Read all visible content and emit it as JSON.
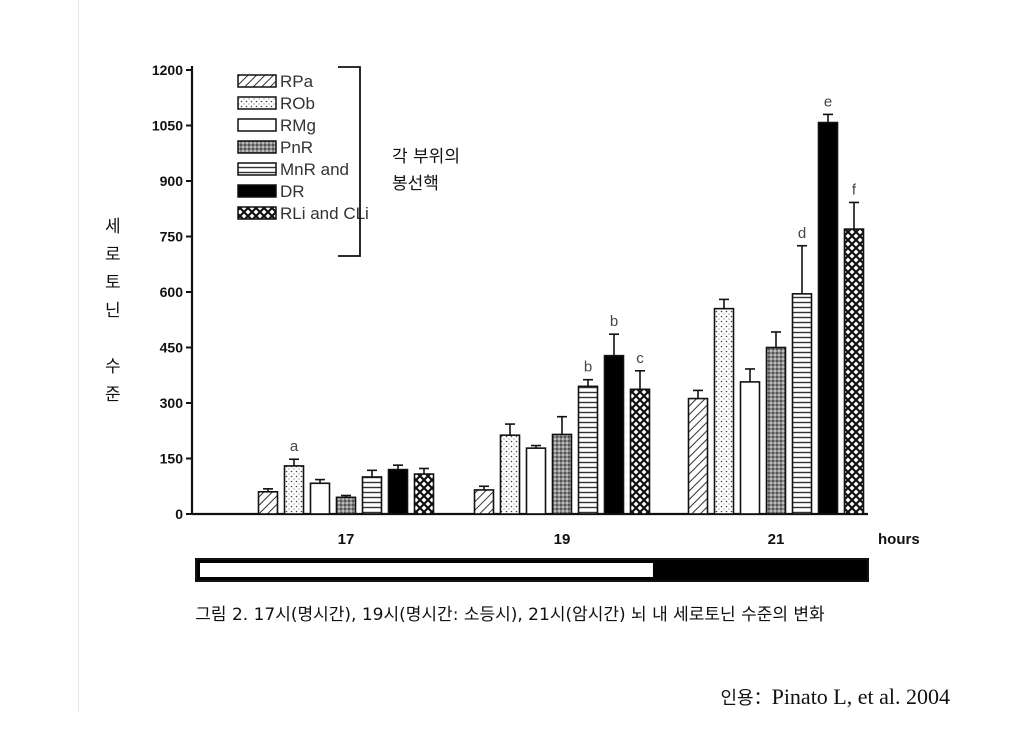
{
  "chart_data": {
    "type": "bar",
    "categories": [
      "17",
      "19",
      "21"
    ],
    "xlabel": "hours",
    "ylabel": "세로토닌 수준",
    "ylim": [
      0,
      1200
    ],
    "yticks": [
      0,
      150,
      300,
      450,
      600,
      750,
      900,
      1050,
      1200
    ],
    "ytick_labels": [
      "0",
      "150",
      "300",
      "450",
      "600",
      "750",
      "900",
      "1050",
      "1200"
    ],
    "legend_position": "top-left",
    "series": [
      {
        "name": "RPa",
        "pattern": "diagonal",
        "values": [
          60,
          65,
          312
        ],
        "errors": [
          8,
          10,
          22
        ],
        "annotations": [
          "",
          "",
          ""
        ]
      },
      {
        "name": "ROb",
        "pattern": "dots",
        "values": [
          130,
          213,
          555
        ],
        "errors": [
          18,
          30,
          25
        ],
        "annotations": [
          "a",
          "",
          ""
        ]
      },
      {
        "name": "RMg",
        "pattern": "white",
        "values": [
          83,
          178,
          357
        ],
        "errors": [
          10,
          7,
          35
        ],
        "annotations": [
          "",
          "",
          ""
        ]
      },
      {
        "name": "PnR",
        "pattern": "crosshatch-dense",
        "values": [
          45,
          215,
          450
        ],
        "errors": [
          5,
          48,
          42
        ],
        "annotations": [
          "",
          "",
          ""
        ]
      },
      {
        "name": "MnR and",
        "pattern": "horizontal",
        "values": [
          100,
          345,
          595
        ],
        "errors": [
          18,
          18,
          130
        ],
        "annotations": [
          "",
          "b",
          "d"
        ]
      },
      {
        "name": "DR",
        "pattern": "black",
        "values": [
          120,
          428,
          1058
        ],
        "errors": [
          12,
          58,
          22
        ],
        "annotations": [
          "",
          "b",
          "e"
        ]
      },
      {
        "name": "RLi and CLi",
        "pattern": "checker",
        "values": [
          108,
          337,
          770
        ],
        "errors": [
          15,
          50,
          72
        ],
        "annotations": [
          "",
          "c",
          "f"
        ]
      }
    ],
    "light_dark_bar": {
      "light_fraction": 0.68
    },
    "bracket_label_lines": [
      "각 부위의",
      "봉선핵"
    ]
  },
  "ylabel_chars": [
    "세",
    "로",
    "토",
    "닌",
    "",
    "수",
    "준"
  ],
  "caption": "그림 2. 17시(명시간), 19시(명시간: 소등시), 21시(암시간) 뇌 내 세로토닌 수준의 변화",
  "citation": {
    "label": "인용：",
    "source": "Pinato L, et al. 2004"
  },
  "colors": {
    "ink": "#111111",
    "bar_fill": "#ffffff"
  }
}
